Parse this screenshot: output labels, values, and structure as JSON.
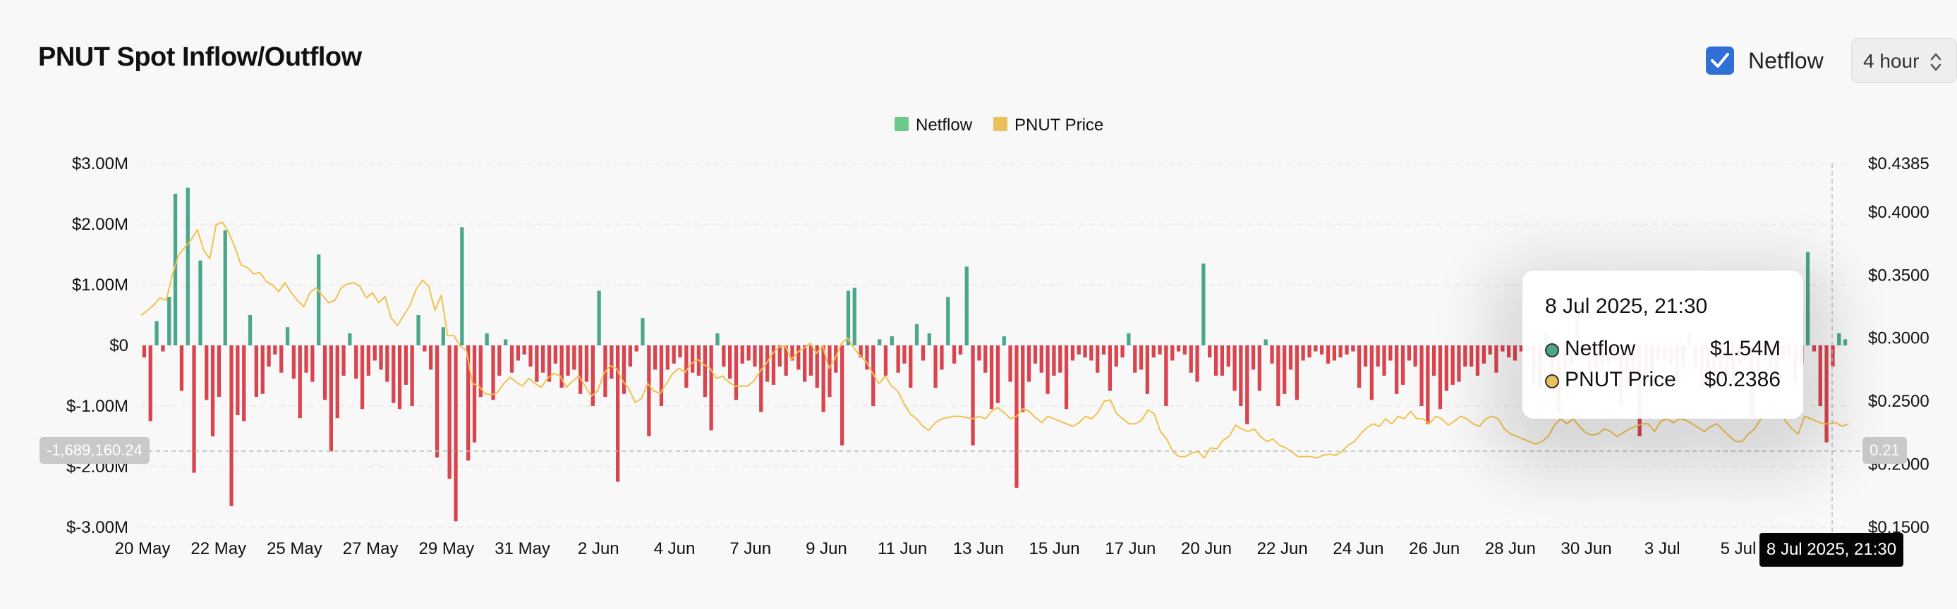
{
  "header": {
    "title": "PNUT Spot Inflow/Outflow",
    "netflow_toggle_label": "Netflow",
    "netflow_checked": true,
    "interval_value": "4 hour"
  },
  "colors": {
    "inflow": "#4aa78c",
    "outflow": "#d9454f",
    "price": "#f2c14e",
    "legend_netflow": "#6cc98a",
    "legend_price": "#e9c05a",
    "accent": "#2f6fd6"
  },
  "icons": {
    "checkbox": "check-icon",
    "select": "chevron-updown-icon"
  },
  "tooltip": {
    "date": "8 Jul 2025, 21:30",
    "rows": [
      {
        "label": "Netflow",
        "value": "$1.54M",
        "dot_color": "#4aa78c"
      },
      {
        "label": "PNUT Price",
        "value": "$0.2386",
        "dot_color": "#e9c05a"
      }
    ]
  },
  "crosshair": {
    "left_value_label": "-1,689,160.24",
    "right_value_label": "0.21",
    "date_label": "8 Jul 2025, 21:30"
  },
  "chart_data": {
    "type": "bar",
    "title": "PNUT Spot Inflow/Outflow",
    "legend": [
      "Netflow",
      "PNUT Price"
    ],
    "legend_position": "top-center",
    "x_tick_labels": [
      "20 May",
      "22 May",
      "25 May",
      "27 May",
      "29 May",
      "31 May",
      "2 Jun",
      "4 Jun",
      "7 Jun",
      "9 Jun",
      "11 Jun",
      "13 Jun",
      "15 Jun",
      "17 Jun",
      "20 Jun",
      "22 Jun",
      "24 Jun",
      "26 Jun",
      "28 Jun",
      "30 Jun",
      "3 Jul",
      "5 Jul"
    ],
    "y_left": {
      "ticks": [
        "$3.00M",
        "$2.00M",
        "$1.00M",
        "$0",
        "$-1.00M",
        "$-2.00M",
        "$-3.00M"
      ],
      "range": [
        -3000000,
        3000000
      ]
    },
    "y_right": {
      "ticks": [
        "$0.4385",
        "$0.4000",
        "$0.3500",
        "$0.3000",
        "$0.2500",
        "$0.2000",
        "$0.1500"
      ],
      "range": [
        0.15,
        0.4385
      ]
    },
    "grid": true,
    "series": [
      {
        "name": "Netflow",
        "type": "bar",
        "values": [
          -200000,
          -1250000,
          400000,
          -100000,
          800000,
          2500000,
          -750000,
          2600000,
          -2100000,
          1400000,
          -900000,
          -1500000,
          -850000,
          1900000,
          -2650000,
          -1150000,
          -1250000,
          500000,
          -850000,
          -800000,
          -350000,
          -150000,
          -450000,
          300000,
          -550000,
          -1200000,
          -450000,
          -600000,
          1500000,
          -900000,
          -1750000,
          -1200000,
          -500000,
          200000,
          -550000,
          -1050000,
          -500000,
          -250000,
          -400000,
          -600000,
          -950000,
          -1050000,
          -650000,
          -1000000,
          500000,
          -100000,
          -400000,
          -1850000,
          300000,
          -2200000,
          -2900000,
          1950000,
          -1900000,
          -1600000,
          -850000,
          200000,
          -900000,
          -500000,
          100000,
          -450000,
          -250000,
          -150000,
          -350000,
          -600000,
          -450000,
          -600000,
          -300000,
          -700000,
          -500000,
          -400000,
          -800000,
          -600000,
          -1000000,
          900000,
          -850000,
          -550000,
          -2250000,
          -800000,
          -350000,
          -100000,
          450000,
          -1500000,
          -400000,
          -1000000,
          -400000,
          -300000,
          -200000,
          -700000,
          -450000,
          -500000,
          -850000,
          -1400000,
          200000,
          -350000,
          -550000,
          -900000,
          -300000,
          -250000,
          -350000,
          -1100000,
          -600000,
          -650000,
          -350000,
          -500000,
          -250000,
          -400000,
          -600000,
          -500000,
          -700000,
          -1100000,
          -850000,
          -450000,
          -1650000,
          900000,
          950000,
          -200000,
          -400000,
          -1000000,
          100000,
          -500000,
          150000,
          -450000,
          -300000,
          -700000,
          350000,
          -250000,
          200000,
          -700000,
          -400000,
          800000,
          -300000,
          -150000,
          1300000,
          -1650000,
          -250000,
          -450000,
          -1050000,
          -950000,
          150000,
          -600000,
          -2350000,
          -1100000,
          -600000,
          -300000,
          -450000,
          -800000,
          -500000,
          -450000,
          -1050000,
          -250000,
          -150000,
          -200000,
          -250000,
          -450000,
          -150000,
          -750000,
          -350000,
          -200000,
          200000,
          -450000,
          -400000,
          -800000,
          -200000,
          -150000,
          -1000000,
          -250000,
          -100000,
          -150000,
          -450000,
          -600000,
          1350000,
          -200000,
          -500000,
          -500000,
          -350000,
          -750000,
          -1000000,
          -1300000,
          -400000,
          -750000,
          100000,
          -300000,
          -1000000,
          -800000,
          -400000,
          -900000,
          -250000,
          -200000,
          -100000,
          -150000,
          -300000,
          -250000,
          -200000,
          -150000,
          -100000,
          -700000,
          -350000,
          -900000,
          -350000,
          -500000,
          -250000,
          -800000,
          -650000,
          -250000,
          -350000,
          -1000000,
          -1300000,
          -500000,
          -1050000,
          -750000,
          -650000,
          -600000,
          -350000,
          -350000,
          -500000,
          -300000,
          -150000,
          -450000,
          -100000,
          -200000,
          -250000,
          -100000,
          -100000,
          -650000,
          -700000,
          200000,
          -700000,
          -1100000,
          -400000,
          -300000,
          700000,
          -150000,
          -450000,
          -400000,
          -350000,
          -300000,
          -250000,
          -1000000,
          -700000,
          -450000,
          -1500000,
          -500000,
          -650000,
          -250000,
          -250000,
          -300000,
          -600000,
          -350000,
          200000,
          -350000,
          -700000,
          -650000,
          -400000,
          -400000,
          -500000,
          -600000,
          -300000,
          -200000,
          -1200000,
          -450000,
          -250000,
          -350000,
          -400000,
          -250000,
          -150000,
          -600000,
          -300000,
          1540000,
          -100000,
          -1000000,
          -1600000,
          -350000,
          200000,
          100000
        ],
        "color": "#4aa78c"
      },
      {
        "name": "PNUT Price",
        "type": "line",
        "values": [
          0.318,
          0.322,
          0.326,
          0.332,
          0.33,
          0.35,
          0.366,
          0.372,
          0.378,
          0.386,
          0.37,
          0.363,
          0.39,
          0.392,
          0.384,
          0.372,
          0.358,
          0.356,
          0.351,
          0.352,
          0.345,
          0.342,
          0.337,
          0.344,
          0.336,
          0.33,
          0.325,
          0.336,
          0.34,
          0.334,
          0.328,
          0.33,
          0.34,
          0.343,
          0.344,
          0.341,
          0.332,
          0.336,
          0.328,
          0.333,
          0.316,
          0.31,
          0.318,
          0.326,
          0.339,
          0.346,
          0.341,
          0.322,
          0.334,
          0.302,
          0.302,
          0.294,
          0.29,
          0.264,
          0.262,
          0.256,
          0.255,
          0.257,
          0.264,
          0.269,
          0.265,
          0.262,
          0.268,
          0.264,
          0.261,
          0.268,
          0.272,
          0.27,
          0.261,
          0.266,
          0.27,
          0.262,
          0.254,
          0.258,
          0.272,
          0.278,
          0.276,
          0.266,
          0.26,
          0.249,
          0.252,
          0.264,
          0.258,
          0.256,
          0.264,
          0.272,
          0.276,
          0.273,
          0.28,
          0.283,
          0.279,
          0.276,
          0.268,
          0.27,
          0.265,
          0.262,
          0.262,
          0.262,
          0.266,
          0.274,
          0.28,
          0.288,
          0.293,
          0.294,
          0.283,
          0.289,
          0.292,
          0.296,
          0.288,
          0.294,
          0.276,
          0.284,
          0.296,
          0.3,
          0.292,
          0.286,
          0.281,
          0.272,
          0.264,
          0.27,
          0.262,
          0.258,
          0.248,
          0.24,
          0.236,
          0.23,
          0.227,
          0.233,
          0.236,
          0.237,
          0.238,
          0.238,
          0.237,
          0.236,
          0.238,
          0.236,
          0.242,
          0.245,
          0.241,
          0.236,
          0.238,
          0.244,
          0.242,
          0.237,
          0.233,
          0.238,
          0.236,
          0.234,
          0.232,
          0.23,
          0.233,
          0.238,
          0.236,
          0.241,
          0.25,
          0.251,
          0.24,
          0.236,
          0.232,
          0.232,
          0.235,
          0.243,
          0.24,
          0.226,
          0.22,
          0.21,
          0.206,
          0.206,
          0.209,
          0.21,
          0.205,
          0.213,
          0.212,
          0.219,
          0.222,
          0.231,
          0.228,
          0.226,
          0.228,
          0.222,
          0.218,
          0.22,
          0.215,
          0.213,
          0.21,
          0.206,
          0.206,
          0.206,
          0.205,
          0.207,
          0.208,
          0.207,
          0.21,
          0.215,
          0.218,
          0.224,
          0.229,
          0.232,
          0.23,
          0.236,
          0.232,
          0.238,
          0.236,
          0.242,
          0.236,
          0.236,
          0.232,
          0.238,
          0.236,
          0.231,
          0.234,
          0.238,
          0.236,
          0.232,
          0.23,
          0.236,
          0.238,
          0.236,
          0.228,
          0.224,
          0.222,
          0.22,
          0.218,
          0.216,
          0.218,
          0.222,
          0.231,
          0.236,
          0.232,
          0.236,
          0.23,
          0.225,
          0.223,
          0.224,
          0.228,
          0.226,
          0.222,
          0.225,
          0.228,
          0.23,
          0.232,
          0.232,
          0.226,
          0.234,
          0.236,
          0.233,
          0.236,
          0.235,
          0.232,
          0.229,
          0.226,
          0.23,
          0.232,
          0.227,
          0.222,
          0.218,
          0.218,
          0.224,
          0.228,
          0.236,
          0.242,
          0.246,
          0.242,
          0.234,
          0.228,
          0.224,
          0.238,
          0.236,
          0.234,
          0.232,
          0.232,
          0.233,
          0.23,
          0.232
        ],
        "color": "#f2c14e"
      }
    ]
  }
}
